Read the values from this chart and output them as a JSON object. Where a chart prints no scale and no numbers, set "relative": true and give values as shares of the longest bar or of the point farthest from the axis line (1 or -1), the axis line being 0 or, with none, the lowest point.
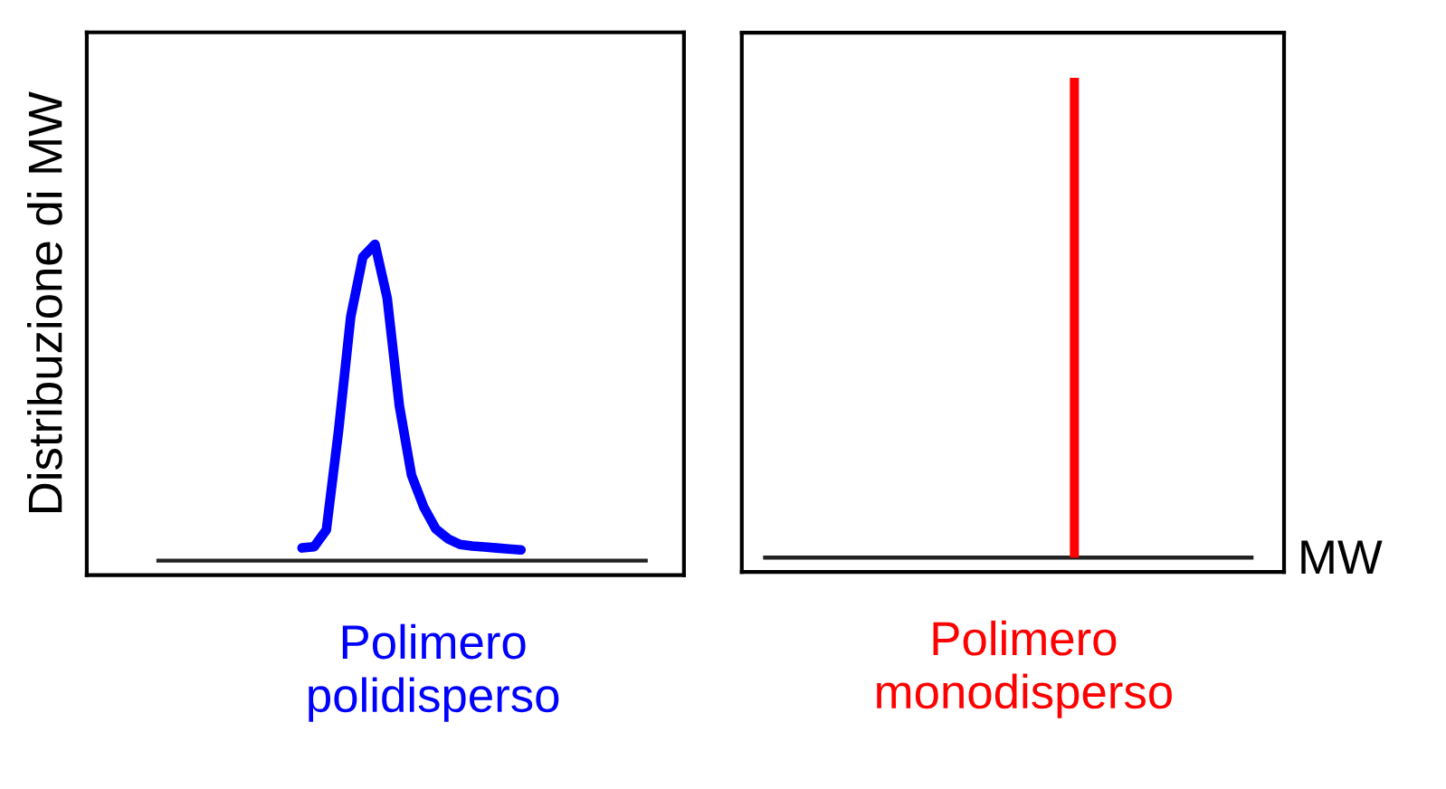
{
  "chart_data": [
    {
      "type": "line",
      "relative": true,
      "title": "Polimero\npolidisperso",
      "ylabel": "Distribuzione di MW",
      "categories": [
        null,
        null,
        null,
        null,
        null,
        null,
        null,
        null,
        null,
        null,
        null,
        null,
        null,
        null,
        null,
        null,
        null,
        null,
        null
      ],
      "series": [
        {
          "color": "#0000ff",
          "values": [
            0.04,
            0.044,
            0.097,
            0.41,
            0.77,
            0.96,
            1,
            0.83,
            0.49,
            0.27,
            0.17,
            0.1,
            0.069,
            0.051,
            0.046,
            0.043,
            0.04,
            0.037,
            0.034
          ]
        }
      ]
    },
    {
      "type": "bar",
      "relative": true,
      "title": "Polimero\nmonodisperso",
      "xlabel": "MW",
      "categories": [
        null
      ],
      "series": [
        {
          "color": "#ff0000",
          "values": [
            1
          ]
        }
      ]
    }
  ]
}
